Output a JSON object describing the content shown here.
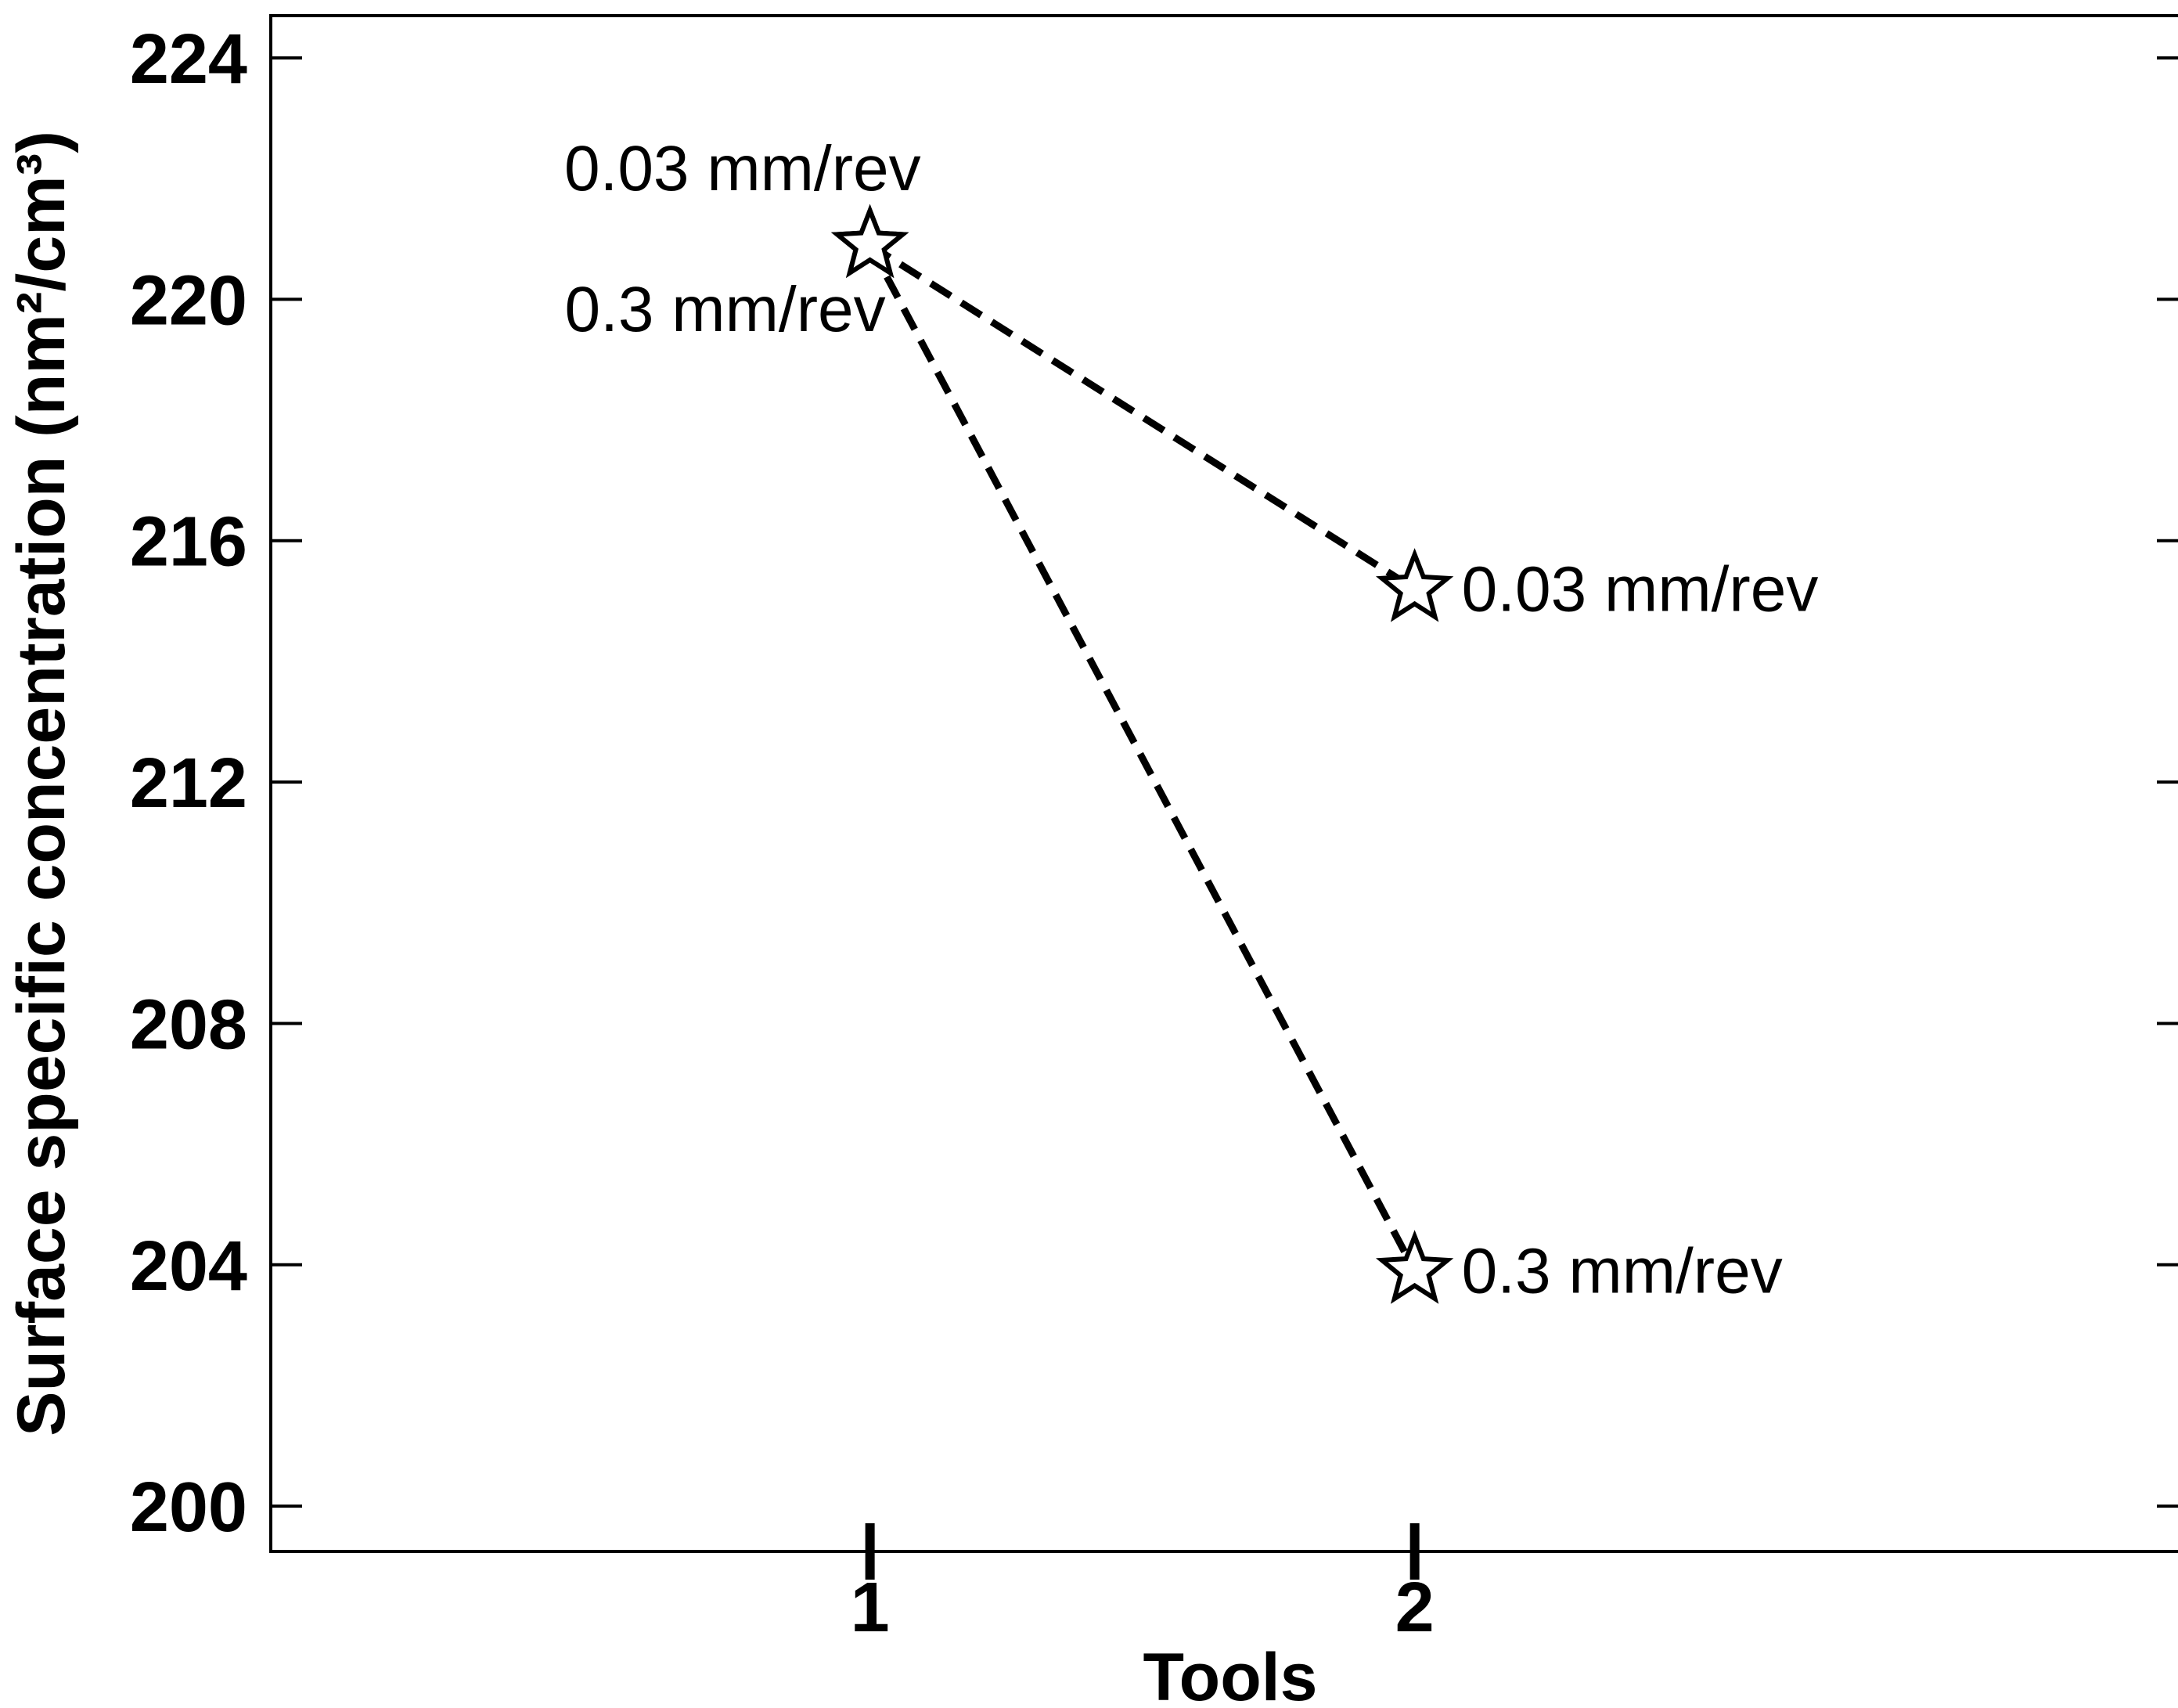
{
  "chart_data": {
    "type": "line",
    "title": "",
    "xlabel": "Tools",
    "ylabel": "Surface specific concentration (nm²/cm³)",
    "categories": [
      "1",
      "2"
    ],
    "x": [
      1,
      2
    ],
    "xlim": [
      -0.1,
      3.42
    ],
    "ylim": [
      199.25,
      224.7
    ],
    "yticks": [
      200,
      204,
      208,
      212,
      216,
      220,
      224
    ],
    "ytick_labels": [
      "200",
      "204",
      "208",
      "212",
      "216",
      "220",
      "224"
    ],
    "grid": false,
    "marker": "star",
    "line_style": "dashed",
    "series": [
      {
        "name": "0.03 mm/rev",
        "values": [
          220.9,
          215.2
        ]
      },
      {
        "name": "0.3 mm/rev",
        "values": [
          220.9,
          203.9
        ]
      }
    ],
    "annotations": [
      {
        "text": "0.03 mm/rev",
        "x": 1,
        "y": 220.9,
        "position": "above-left"
      },
      {
        "text": "0.3 mm/rev",
        "x": 1,
        "y": 220.9,
        "position": "below-left"
      },
      {
        "text": "0.03 mm/rev",
        "x": 2,
        "y": 215.2,
        "position": "right"
      },
      {
        "text": "0.3 mm/rev",
        "x": 2,
        "y": 203.9,
        "position": "right"
      }
    ]
  }
}
